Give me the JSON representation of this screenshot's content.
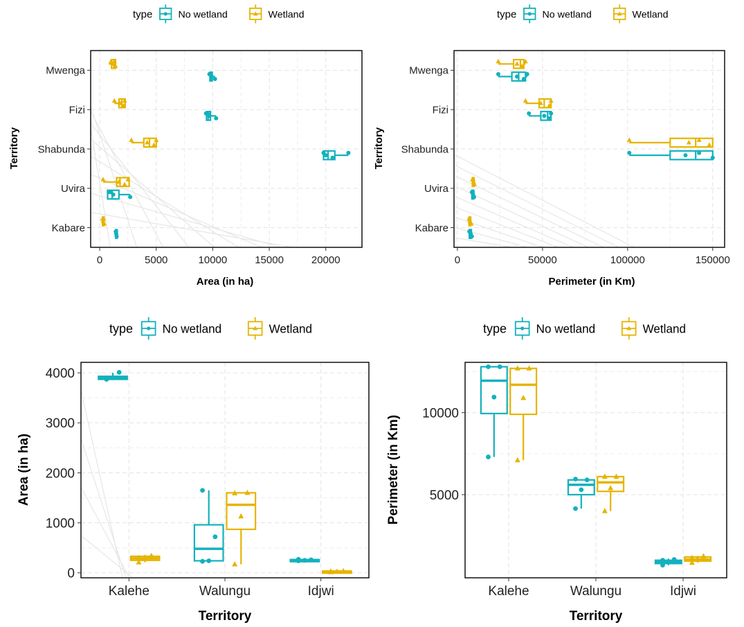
{
  "chart_data": [
    {
      "type": "boxplot",
      "orientation": "horizontal",
      "legend": {
        "title": "type",
        "entries": [
          "No wetland",
          "Wetland"
        ],
        "position": "top"
      },
      "xlabel": "Area (in ha)",
      "ylabel": "Territory",
      "xlim": [
        -800,
        23200
      ],
      "xticks": [
        0,
        5000,
        10000,
        15000,
        20000
      ],
      "categories": [
        "Kabare",
        "Uvira",
        "Shabunda",
        "Fizi",
        "Mwenga"
      ],
      "series": [
        {
          "name": "No wetland",
          "color": "#13b1bd",
          "marker": "circle",
          "boxes": [
            {
              "min": 1400,
              "q1": 1420,
              "median": 1450,
              "q3": 1480,
              "max": 1550,
              "points": [
                1420,
                1460,
                1500,
                1450
              ]
            },
            {
              "min": 700,
              "q1": 700,
              "median": 1100,
              "q3": 1700,
              "max": 2700,
              "points": [
                800,
                1200,
                2700,
                1000
              ]
            },
            {
              "min": 19800,
              "q1": 19800,
              "median": 20200,
              "q3": 20800,
              "max": 22000,
              "points": [
                19800,
                20000,
                20600,
                22000
              ]
            },
            {
              "min": 9400,
              "q1": 9450,
              "median": 9600,
              "q3": 9800,
              "max": 10300,
              "points": [
                9400,
                9700,
                10300,
                9550
              ]
            },
            {
              "min": 9700,
              "q1": 9750,
              "median": 9850,
              "q3": 9950,
              "max": 10200,
              "points": [
                9700,
                9900,
                10200,
                9800
              ]
            }
          ]
        },
        {
          "name": "Wetland",
          "color": "#e6b400",
          "marker": "triangle",
          "boxes": [
            {
              "min": 200,
              "q1": 250,
              "median": 300,
              "q3": 380,
              "max": 450,
              "points": [
                250,
                300,
                400,
                350
              ]
            },
            {
              "min": 300,
              "q1": 1500,
              "median": 1800,
              "q3": 2600,
              "max": 2600,
              "points": [
                300,
                1700,
                2200,
                2500
              ]
            },
            {
              "min": 2800,
              "q1": 3900,
              "median": 4400,
              "q3": 5000,
              "max": 5100,
              "points": [
                2800,
                4200,
                4800,
                5000
              ]
            },
            {
              "min": 1300,
              "q1": 1700,
              "median": 1950,
              "q3": 2250,
              "max": 2300,
              "points": [
                1300,
                1800,
                2100,
                2200
              ]
            },
            {
              "min": 800,
              "q1": 1050,
              "median": 1250,
              "q3": 1400,
              "max": 1450,
              "points": [
                1000,
                1200,
                1400,
                1300
              ]
            }
          ]
        }
      ]
    },
    {
      "type": "boxplot",
      "orientation": "horizontal",
      "legend": {
        "title": "type",
        "entries": [
          "No wetland",
          "Wetland"
        ],
        "position": "top"
      },
      "xlabel": "Perimeter (in Km)",
      "ylabel": "Territory",
      "xlim": [
        -2000,
        157000
      ],
      "xticks": [
        0,
        50000,
        100000,
        150000
      ],
      "categories": [
        "Kabare",
        "Uvira",
        "Shabunda",
        "Fizi",
        "Mwenga"
      ],
      "series": [
        {
          "name": "No wetland",
          "color": "#13b1bd",
          "marker": "circle",
          "boxes": [
            {
              "min": 6800,
              "q1": 7000,
              "median": 7600,
              "q3": 8200,
              "max": 8500,
              "points": [
                7000,
                7800,
                8500,
                7400
              ]
            },
            {
              "min": 8200,
              "q1": 8500,
              "median": 9000,
              "q3": 9600,
              "max": 9800,
              "points": [
                8500,
                9200,
                9800,
                9000
              ]
            },
            {
              "min": 101000,
              "q1": 125000,
              "median": 140000,
              "q3": 150000,
              "max": 150000,
              "points": [
                101000,
                134000,
                150000,
                142000
              ]
            },
            {
              "min": 42000,
              "q1": 49000,
              "median": 53000,
              "q3": 55000,
              "max": 55000,
              "points": [
                42000,
                51000,
                54000,
                55000
              ]
            },
            {
              "min": 24000,
              "q1": 32000,
              "median": 36000,
              "q3": 40000,
              "max": 41000,
              "points": [
                24000,
                35000,
                39000,
                41000
              ]
            }
          ]
        },
        {
          "name": "Wetland",
          "color": "#e6b400",
          "marker": "triangle",
          "boxes": [
            {
              "min": 6500,
              "q1": 6800,
              "median": 7300,
              "q3": 7800,
              "max": 8200,
              "points": [
                6800,
                7400,
                8200,
                7100
              ]
            },
            {
              "min": 8400,
              "q1": 8800,
              "median": 9400,
              "q3": 9800,
              "max": 10000,
              "points": [
                8800,
                9500,
                10000,
                9300
              ]
            },
            {
              "min": 101000,
              "q1": 125000,
              "median": 140000,
              "q3": 150000,
              "max": 150000,
              "points": [
                101000,
                136000,
                148000,
                142000
              ]
            },
            {
              "min": 40000,
              "q1": 48000,
              "median": 51000,
              "q3": 55000,
              "max": 55000,
              "points": [
                40000,
                49000,
                54000,
                55000
              ]
            },
            {
              "min": 24000,
              "q1": 33000,
              "median": 37000,
              "q3": 39000,
              "max": 40000,
              "points": [
                24000,
                35000,
                38000,
                40000
              ]
            }
          ]
        }
      ]
    },
    {
      "type": "boxplot",
      "orientation": "vertical",
      "legend": {
        "title": "type",
        "entries": [
          "No wetland",
          "Wetland"
        ],
        "position": "top"
      },
      "xlabel": "Territory",
      "ylabel": "Area (in ha)",
      "ylim": [
        -100,
        4210
      ],
      "yticks": [
        0,
        1000,
        2000,
        3000,
        4000
      ],
      "categories": [
        "Kalehe",
        "Walungu",
        "Idjwi"
      ],
      "series": [
        {
          "name": "No wetland",
          "color": "#13b1bd",
          "marker": "circle",
          "boxes": [
            {
              "min": 3860,
              "q1": 3870,
              "median": 3900,
              "q3": 3930,
              "max": 4000,
              "points": [
                3870,
                3900,
                4010,
                3880
              ]
            },
            {
              "min": 230,
              "q1": 240,
              "median": 480,
              "q3": 960,
              "max": 1650,
              "points": [
                230,
                240,
                720,
                1650
              ]
            },
            {
              "min": 230,
              "q1": 240,
              "median": 250,
              "q3": 265,
              "max": 275,
              "points": [
                240,
                250,
                260,
                270
              ]
            }
          ]
        },
        {
          "name": "Wetland",
          "color": "#e6b400",
          "marker": "triangle",
          "boxes": [
            {
              "min": 210,
              "q1": 250,
              "median": 290,
              "q3": 330,
              "max": 360,
              "points": [
                210,
                280,
                340,
                300
              ]
            },
            {
              "min": 170,
              "q1": 870,
              "median": 1360,
              "q3": 1600,
              "max": 1600,
              "points": [
                170,
                1130,
                1600,
                1590
              ]
            },
            {
              "min": 10,
              "q1": 15,
              "median": 25,
              "q3": 35,
              "max": 40,
              "points": [
                15,
                25,
                35,
                30
              ]
            }
          ]
        }
      ]
    },
    {
      "type": "boxplot",
      "orientation": "vertical",
      "legend": {
        "title": "type",
        "entries": [
          "No wetland",
          "Wetland"
        ],
        "position": "top"
      },
      "xlabel": "Territory",
      "ylabel": "Perimeter (in Km)",
      "ylim": [
        -70,
        13070
      ],
      "yticks": [
        5000,
        10000
      ],
      "categories": [
        "Kalehe",
        "Walungu",
        "Idjwi"
      ],
      "series": [
        {
          "name": "No wetland",
          "color": "#13b1bd",
          "marker": "circle",
          "boxes": [
            {
              "min": 7300,
              "q1": 9950,
              "median": 11950,
              "q3": 12800,
              "max": 12800,
              "points": [
                7300,
                10950,
                12800,
                12800
              ]
            },
            {
              "min": 4150,
              "q1": 5000,
              "median": 5600,
              "q3": 5900,
              "max": 5950,
              "points": [
                4150,
                5300,
                5900,
                5950
              ]
            },
            {
              "min": 700,
              "q1": 800,
              "median": 900,
              "q3": 1000,
              "max": 1100,
              "points": [
                700,
                900,
                1050,
                1000
              ]
            }
          ]
        },
        {
          "name": "Wetland",
          "color": "#e6b400",
          "marker": "triangle",
          "boxes": [
            {
              "min": 7100,
              "q1": 9900,
              "median": 11700,
              "q3": 12700,
              "max": 12700,
              "points": [
                7100,
                10900,
                12700,
                12700
              ]
            },
            {
              "min": 4000,
              "q1": 5200,
              "median": 5750,
              "q3": 6100,
              "max": 6100,
              "points": [
                4000,
                5400,
                6100,
                6100
              ]
            },
            {
              "min": 850,
              "q1": 950,
              "median": 1050,
              "q3": 1200,
              "max": 1250,
              "points": [
                850,
                1100,
                1250,
                1150
              ]
            }
          ]
        }
      ]
    }
  ]
}
